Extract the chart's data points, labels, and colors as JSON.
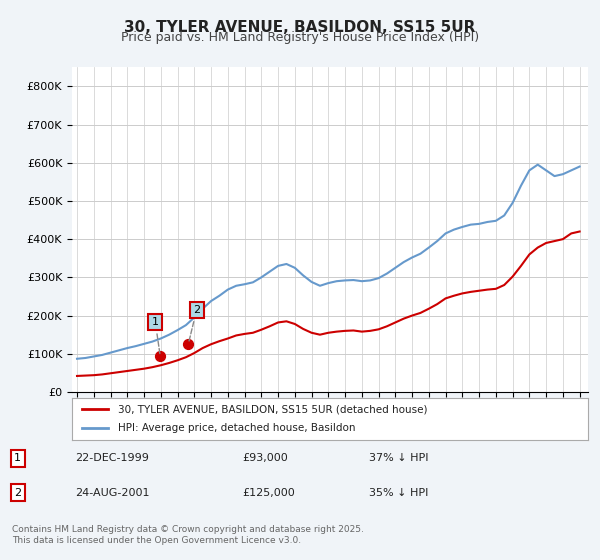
{
  "title1": "30, TYLER AVENUE, BASILDON, SS15 5UR",
  "title2": "Price paid vs. HM Land Registry's House Price Index (HPI)",
  "legend_label_red": "30, TYLER AVENUE, BASILDON, SS15 5UR (detached house)",
  "legend_label_blue": "HPI: Average price, detached house, Basildon",
  "footer": "Contains HM Land Registry data © Crown copyright and database right 2025.\nThis data is licensed under the Open Government Licence v3.0.",
  "sale1_label": "1",
  "sale1_date": "22-DEC-1999",
  "sale1_price": "£93,000",
  "sale1_hpi": "37% ↓ HPI",
  "sale1_year": 1999.97,
  "sale1_value": 93000,
  "sale2_label": "2",
  "sale2_date": "24-AUG-2001",
  "sale2_price": "£125,000",
  "sale2_hpi": "35% ↓ HPI",
  "sale2_year": 2001.64,
  "sale2_value": 125000,
  "red_color": "#cc0000",
  "blue_color": "#6699cc",
  "bg_color": "#f0f4f8",
  "plot_bg": "#ffffff",
  "grid_color": "#cccccc",
  "ylim_max": 850000,
  "hpi_years": [
    1995.0,
    1995.5,
    1996.0,
    1996.5,
    1997.0,
    1997.5,
    1998.0,
    1998.5,
    1999.0,
    1999.5,
    2000.0,
    2000.5,
    2001.0,
    2001.5,
    2002.0,
    2002.5,
    2003.0,
    2003.5,
    2004.0,
    2004.5,
    2005.0,
    2005.5,
    2006.0,
    2006.5,
    2007.0,
    2007.5,
    2008.0,
    2008.5,
    2009.0,
    2009.5,
    2010.0,
    2010.5,
    2011.0,
    2011.5,
    2012.0,
    2012.5,
    2013.0,
    2013.5,
    2014.0,
    2014.5,
    2015.0,
    2015.5,
    2016.0,
    2016.5,
    2017.0,
    2017.5,
    2018.0,
    2018.5,
    2019.0,
    2019.5,
    2020.0,
    2020.5,
    2021.0,
    2021.5,
    2022.0,
    2022.5,
    2023.0,
    2023.5,
    2024.0,
    2024.5,
    2025.0
  ],
  "hpi_values": [
    87000,
    89000,
    93000,
    97000,
    103000,
    109000,
    115000,
    120000,
    126000,
    132000,
    140000,
    150000,
    162000,
    175000,
    195000,
    218000,
    238000,
    252000,
    268000,
    278000,
    282000,
    287000,
    300000,
    315000,
    330000,
    335000,
    325000,
    305000,
    288000,
    278000,
    285000,
    290000,
    292000,
    293000,
    290000,
    292000,
    298000,
    310000,
    325000,
    340000,
    352000,
    362000,
    378000,
    395000,
    415000,
    425000,
    432000,
    438000,
    440000,
    445000,
    448000,
    462000,
    495000,
    540000,
    580000,
    595000,
    580000,
    565000,
    570000,
    580000,
    590000
  ],
  "red_years": [
    1995.0,
    1995.5,
    1996.0,
    1996.5,
    1997.0,
    1997.5,
    1998.0,
    1998.5,
    1999.0,
    1999.5,
    2000.0,
    2000.5,
    2001.0,
    2001.5,
    2002.0,
    2002.5,
    2003.0,
    2003.5,
    2004.0,
    2004.5,
    2005.0,
    2005.5,
    2006.0,
    2006.5,
    2007.0,
    2007.5,
    2008.0,
    2008.5,
    2009.0,
    2009.5,
    2010.0,
    2010.5,
    2011.0,
    2011.5,
    2012.0,
    2012.5,
    2013.0,
    2013.5,
    2014.0,
    2014.5,
    2015.0,
    2015.5,
    2016.0,
    2016.5,
    2017.0,
    2017.5,
    2018.0,
    2018.5,
    2019.0,
    2019.5,
    2020.0,
    2020.5,
    2021.0,
    2021.5,
    2022.0,
    2022.5,
    2023.0,
    2023.5,
    2024.0,
    2024.5,
    2025.0
  ],
  "red_values": [
    42000,
    43000,
    44000,
    46000,
    49000,
    52000,
    55000,
    58000,
    61000,
    65000,
    70000,
    76000,
    83000,
    91000,
    102000,
    115000,
    125000,
    133000,
    140000,
    148000,
    152000,
    155000,
    163000,
    172000,
    182000,
    185000,
    178000,
    165000,
    155000,
    150000,
    155000,
    158000,
    160000,
    161000,
    158000,
    160000,
    164000,
    172000,
    182000,
    192000,
    200000,
    207000,
    218000,
    230000,
    245000,
    252000,
    258000,
    262000,
    265000,
    268000,
    270000,
    280000,
    302000,
    330000,
    360000,
    378000,
    390000,
    395000,
    400000,
    415000,
    420000
  ],
  "sale_marker_color": "#cc0000",
  "annotation_box_color": "#add8e6",
  "annotation_line_color": "#888888"
}
